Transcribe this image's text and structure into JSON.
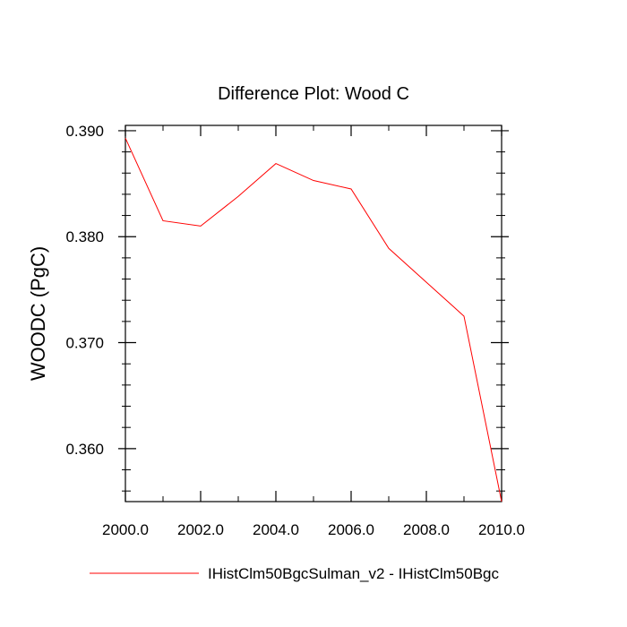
{
  "chart_data": {
    "type": "line",
    "title": "Difference Plot: Wood C",
    "xlabel": "",
    "ylabel": "WOODC  (PgC)",
    "x": [
      2000,
      2001,
      2002,
      2003,
      2004,
      2005,
      2006,
      2007,
      2008,
      2009,
      2010
    ],
    "series": [
      {
        "name": "IHistClm50BgcSulman_v2 - IHistClm50Bgc",
        "color": "#ff0000",
        "values": [
          0.3893,
          0.3815,
          0.381,
          0.3838,
          0.3869,
          0.3853,
          0.3845,
          0.3789,
          0.3757,
          0.3725,
          0.355
        ]
      }
    ],
    "xlim": [
      2000,
      2010
    ],
    "ylim": [
      0.355,
      0.3905
    ],
    "x_ticks": [
      "2000.0",
      "2002.0",
      "2004.0",
      "2006.0",
      "2008.0",
      "2010.0"
    ],
    "x_tick_values": [
      2000,
      2002,
      2004,
      2006,
      2008,
      2010
    ],
    "y_ticks": [
      "0.360",
      "0.370",
      "0.380",
      "0.390"
    ],
    "y_tick_values": [
      0.36,
      0.37,
      0.38,
      0.39
    ],
    "grid": false,
    "legend_position": "bottom"
  }
}
